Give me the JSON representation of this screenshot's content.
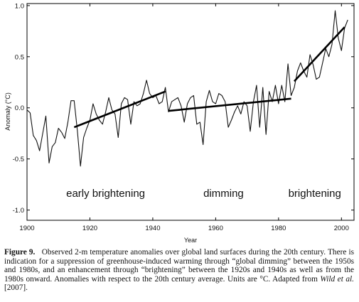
{
  "chart_data": {
    "type": "line",
    "title": "",
    "xlabel": "Year",
    "ylabel": "Anomaly (°C)",
    "xlim": [
      1900,
      2004
    ],
    "ylim": [
      -1.1,
      1.02
    ],
    "xticks": [
      1900,
      1920,
      1940,
      1960,
      1980,
      2000
    ],
    "yticks": [
      -1.0,
      -0.5,
      0.0,
      0.5,
      1.0
    ],
    "ytick_labels": [
      "-1.0",
      "-0.5",
      "0.0",
      "0.5",
      "1.0"
    ],
    "grid": false,
    "series": [
      {
        "x": [
          1900,
          1901,
          1902,
          1903,
          1904,
          1905,
          1906,
          1907,
          1908,
          1909,
          1910,
          1911,
          1912,
          1913,
          1914,
          1915,
          1916,
          1917,
          1918,
          1919,
          1920,
          1921,
          1922,
          1923,
          1924,
          1925,
          1926,
          1927,
          1928,
          1929,
          1930,
          1931,
          1932,
          1933,
          1934,
          1935,
          1936,
          1937,
          1938,
          1939,
          1940,
          1941,
          1942,
          1943,
          1944,
          1945,
          1946,
          1947,
          1948,
          1949,
          1950,
          1951,
          1952,
          1953,
          1954,
          1955,
          1956,
          1957,
          1958,
          1959,
          1960,
          1961,
          1962,
          1963,
          1964,
          1965,
          1966,
          1967,
          1968,
          1969,
          1970,
          1971,
          1972,
          1973,
          1974,
          1975,
          1976,
          1977,
          1978,
          1979,
          1980,
          1981,
          1982,
          1983,
          1984,
          1985,
          1986,
          1987,
          1988,
          1989,
          1990,
          1991,
          1992,
          1993,
          1994,
          1995,
          1996,
          1997,
          1998,
          1999,
          2000,
          2001,
          2002
        ],
        "values": [
          -0.02,
          -0.05,
          -0.27,
          -0.32,
          -0.42,
          -0.25,
          -0.08,
          -0.54,
          -0.38,
          -0.34,
          -0.2,
          -0.24,
          -0.3,
          -0.14,
          0.07,
          0.07,
          -0.22,
          -0.57,
          -0.29,
          -0.2,
          -0.12,
          0.04,
          -0.06,
          -0.12,
          -0.16,
          -0.04,
          0.1,
          -0.02,
          -0.06,
          -0.29,
          0.04,
          0.1,
          0.08,
          -0.16,
          0.06,
          0.02,
          0.04,
          0.14,
          0.27,
          0.14,
          0.1,
          0.12,
          0.04,
          0.06,
          0.2,
          -0.04,
          0.06,
          0.08,
          0.1,
          0.02,
          -0.14,
          0.04,
          0.1,
          0.12,
          -0.16,
          -0.14,
          -0.36,
          0.06,
          0.17,
          0.06,
          0.04,
          0.14,
          0.12,
          0.06,
          -0.19,
          -0.12,
          -0.04,
          0.02,
          -0.06,
          0.06,
          0.02,
          -0.23,
          0.06,
          0.22,
          -0.19,
          0.2,
          -0.26,
          0.16,
          0.06,
          0.22,
          0.04,
          0.22,
          0.06,
          0.43,
          0.12,
          0.2,
          0.36,
          0.44,
          0.36,
          0.3,
          0.52,
          0.42,
          0.28,
          0.3,
          0.44,
          0.58,
          0.5,
          0.62,
          0.95,
          0.68,
          0.56,
          0.78,
          0.86
        ]
      }
    ],
    "trend_lines": [
      {
        "x": [
          1915,
          1944
        ],
        "y": [
          -0.19,
          0.16
        ]
      },
      {
        "x": [
          1945,
          1984
        ],
        "y": [
          -0.03,
          0.09
        ]
      },
      {
        "x": [
          1985,
          2001
        ],
        "y": [
          0.26,
          0.79
        ]
      }
    ],
    "annotations": [
      {
        "text": "early brightening",
        "x": 1925,
        "y": -0.87
      },
      {
        "text": "dimming",
        "x": 1962.5,
        "y": -0.87
      },
      {
        "text": "brightening",
        "x": 1991.5,
        "y": -0.87
      }
    ]
  },
  "caption": {
    "figure_label": "Figure 9.",
    "text_1": "Observed 2-m temperature anomalies over global land surfaces during the 20th century. There is indication for a suppression of greenhouse-induced warming through “global dimming” between the 1950s and 1980s, and an enhancement through “brightening” between the 1920s and 1940s as well as from the 1980s onward. Anomalies with respect to the 20th century average. Units are °C. Adapted from ",
    "citation_authors": "Wild et al.",
    "citation_year": " [2007]."
  }
}
